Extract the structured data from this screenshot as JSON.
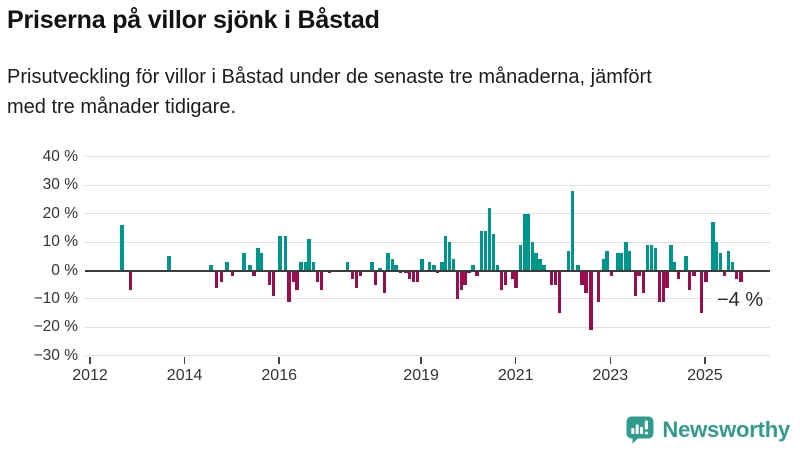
{
  "header": {
    "title": "Priserna på villor sjönk i Båstad",
    "subtitle_line1": "Prisutveckling för villor i Båstad under de senaste tre månaderna, jämfört",
    "subtitle_line2": "med tre månader tidigare."
  },
  "chart": {
    "y_ticks": [
      {
        "label": "40 %",
        "value": 40
      },
      {
        "label": "30 %",
        "value": 30
      },
      {
        "label": "20 %",
        "value": 20
      },
      {
        "label": "10 %",
        "value": 10
      },
      {
        "label": "0 %",
        "value": 0
      },
      {
        "label": "−10 %",
        "value": -10
      },
      {
        "label": "−20 %",
        "value": -20
      },
      {
        "label": "−30 %",
        "value": -30
      }
    ],
    "x_ticks": [
      {
        "label": "2012",
        "year": 2012
      },
      {
        "label": "2014",
        "year": 2014
      },
      {
        "label": "2016",
        "year": 2016
      },
      {
        "label": "2019",
        "year": 2019
      },
      {
        "label": "2021",
        "year": 2021
      },
      {
        "label": "2023",
        "year": 2023
      },
      {
        "label": "2025",
        "year": 2025
      }
    ],
    "annotation_label": "−4 %"
  },
  "chart_data": {
    "type": "bar",
    "title": "Priserna på villor sjönk i Båstad",
    "subtitle": "Prisutveckling för villor i Båstad under de senaste tre månaderna, jämfört med tre månader tidigare.",
    "xlabel": "",
    "ylabel": "",
    "unit": "%",
    "period": "monthly, 3-month rolling price change",
    "ylim": [
      -30,
      40
    ],
    "xlim": [
      2011.9,
      2026.4
    ],
    "grid": "horizontal",
    "legend": "none",
    "colors": {
      "positive": "#00968c",
      "negative": "#9c0d4e"
    },
    "annotation": {
      "text": "−4 %",
      "x": 2025.76,
      "y": -4
    },
    "x": [
      2012.68,
      2012.85,
      2013.67,
      2014.56,
      2014.68,
      2014.78,
      2014.9,
      2015.01,
      2015.26,
      2015.38,
      2015.47,
      2015.55,
      2015.63,
      2015.8,
      2015.88,
      2016.02,
      2016.13,
      2016.21,
      2016.3,
      2016.38,
      2016.46,
      2016.55,
      2016.63,
      2016.72,
      2016.81,
      2016.89,
      2017.06,
      2017.45,
      2017.55,
      2017.63,
      2017.72,
      2017.96,
      2018.04,
      2018.13,
      2018.22,
      2018.3,
      2018.39,
      2018.47,
      2018.56,
      2018.68,
      2018.76,
      2018.84,
      2018.92,
      2019.02,
      2019.18,
      2019.27,
      2019.35,
      2019.44,
      2019.52,
      2019.6,
      2019.68,
      2019.77,
      2019.85,
      2019.93,
      2020.01,
      2020.1,
      2020.18,
      2020.28,
      2020.36,
      2020.44,
      2020.53,
      2020.61,
      2020.7,
      2020.78,
      2020.93,
      2021.01,
      2021.1,
      2021.18,
      2021.26,
      2021.35,
      2021.43,
      2021.51,
      2021.6,
      2021.76,
      2021.84,
      2021.92,
      2022.12,
      2022.2,
      2022.32,
      2022.4,
      2022.49,
      2022.59,
      2022.75,
      2022.85,
      2022.93,
      2023.02,
      2023.16,
      2023.24,
      2023.33,
      2023.41,
      2023.53,
      2023.61,
      2023.7,
      2023.79,
      2023.87,
      2023.95,
      2024.04,
      2024.12,
      2024.2,
      2024.28,
      2024.36,
      2024.44,
      2024.6,
      2024.68,
      2024.77,
      2024.93,
      2025.02,
      2025.17,
      2025.25,
      2025.33,
      2025.41,
      2025.5,
      2025.58,
      2025.67,
      2025.76
    ],
    "values": [
      16,
      -7,
      5,
      2,
      -6,
      -4,
      3,
      -2,
      6,
      2,
      -2,
      8,
      6,
      -5,
      -9,
      12,
      12,
      -11,
      -4,
      -7,
      3,
      3,
      11,
      3,
      -4,
      -7,
      -1,
      3,
      -3,
      -6,
      -2,
      3,
      -5,
      1,
      -8,
      6,
      4,
      2,
      -1,
      -1,
      -3,
      -4,
      -4,
      4,
      3,
      2,
      -1,
      3,
      12,
      10,
      4,
      -10,
      -7,
      -5,
      -1,
      2,
      -2,
      14,
      14,
      22,
      13,
      2,
      -7,
      -5,
      -3,
      -6,
      9,
      20,
      20,
      10,
      6,
      4,
      2,
      -5,
      -5,
      -15,
      7,
      28,
      2,
      -5,
      -8,
      -21,
      -11,
      4,
      7,
      -2,
      6,
      6,
      10,
      7,
      -9,
      -2,
      -8,
      9,
      9,
      8,
      -11,
      -11,
      -6,
      9,
      3,
      -3,
      5,
      -7,
      -2,
      -15,
      -4,
      17,
      10,
      6,
      -2,
      7,
      3,
      -3,
      -4
    ]
  },
  "footer": {
    "brand": "Newsworthy",
    "brand_color": "#2f9c8e"
  }
}
